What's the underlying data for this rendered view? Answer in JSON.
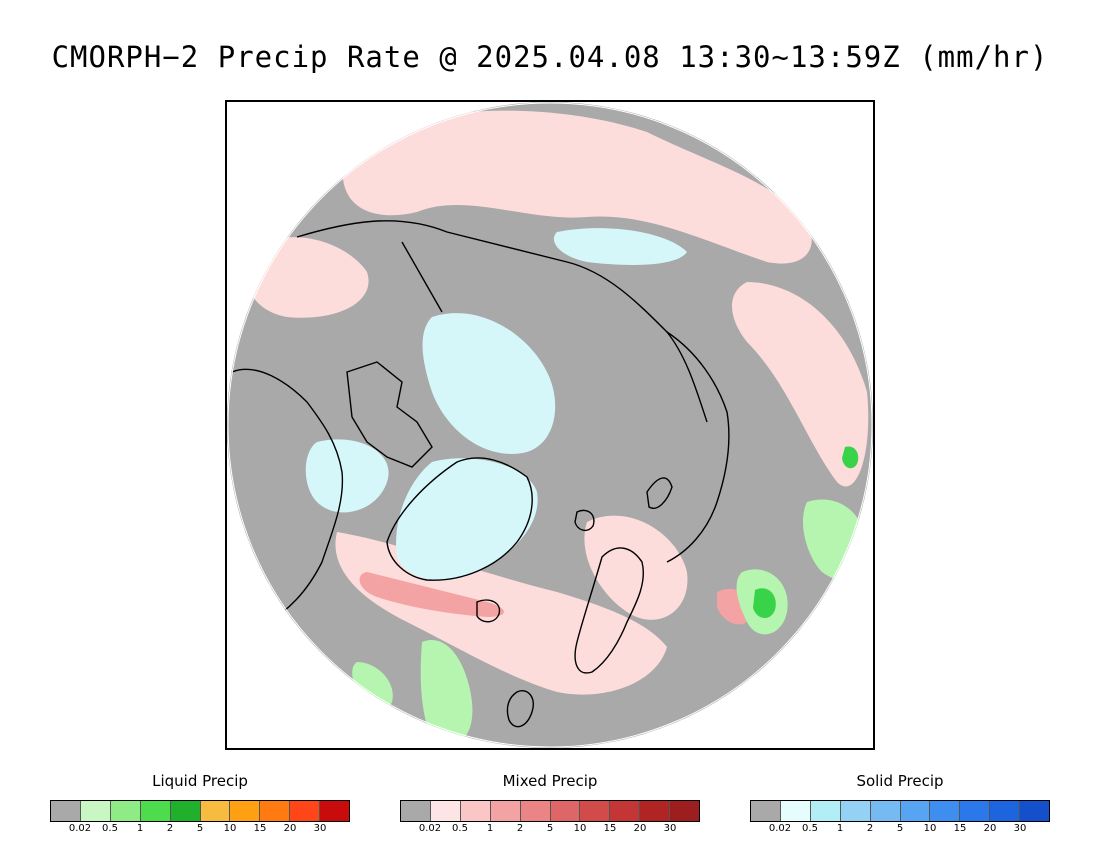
{
  "title": "CMORPH−2 Precip Rate @ 2025.04.08 13:30∼13:59Z (mm/hr)",
  "map": {
    "projection": "north-polar-stereographic",
    "colors": {
      "no_precip": "#a9a9a9",
      "outside": "#ffffff",
      "coastline": "#000000",
      "mixed_light": "#fddcdc",
      "mixed_medium": "#f3a3a3",
      "solid_light": "#d6f7fa",
      "liquid_light": "#b6f5b0",
      "liquid_heavy": "#39d34a"
    }
  },
  "legends": [
    {
      "title": "Liquid Precip",
      "colors": [
        "#a9a9a9",
        "#c9f7c4",
        "#8feb85",
        "#4cdc4c",
        "#21b02b",
        "#f7bb3f",
        "#ff9f12",
        "#ff7a11",
        "#ff4618",
        "#c80b0b"
      ],
      "ticks": [
        "0.02",
        "0.5",
        "1",
        "2",
        "5",
        "10",
        "15",
        "20",
        "30"
      ]
    },
    {
      "title": "Mixed Precip",
      "colors": [
        "#a9a9a9",
        "#fde5e5",
        "#fbc6c6",
        "#f3a3a3",
        "#eb8484",
        "#de6666",
        "#d24b4b",
        "#c43636",
        "#b02424",
        "#9c1e1e"
      ],
      "ticks": [
        "0.02",
        "0.5",
        "1",
        "2",
        "5",
        "10",
        "15",
        "20",
        "30"
      ]
    },
    {
      "title": "Solid Precip",
      "colors": [
        "#a9a9a9",
        "#e6fdfd",
        "#b2eef5",
        "#93d2f5",
        "#76baf4",
        "#57a4f2",
        "#3e8ef0",
        "#2a78ea",
        "#1d64df",
        "#1450cc"
      ],
      "ticks": [
        "0.02",
        "0.5",
        "1",
        "2",
        "5",
        "10",
        "15",
        "20",
        "30"
      ]
    }
  ]
}
